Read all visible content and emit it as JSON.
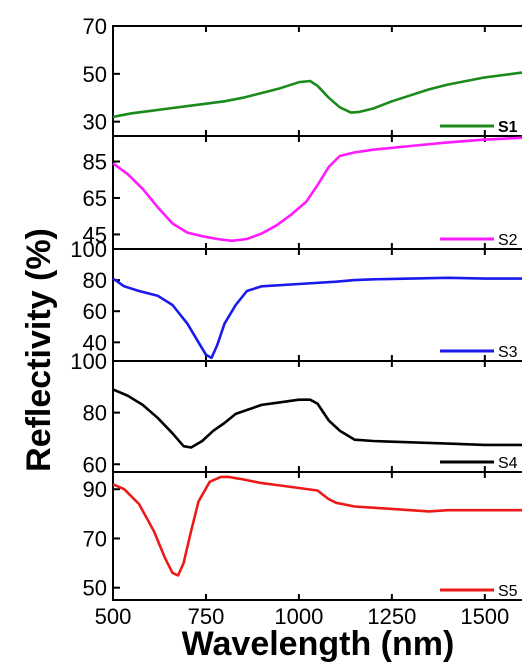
{
  "figure": {
    "xlabel": "Wavelength (nm)",
    "ylabel": "Reflectivity (%)"
  },
  "chart_data": [
    {
      "type": "line",
      "series": [
        {
          "name": "S1",
          "color": "#1a8a1a",
          "x": [
            500,
            550,
            600,
            650,
            700,
            750,
            800,
            850,
            900,
            950,
            1000,
            1030,
            1050,
            1080,
            1110,
            1140,
            1160,
            1200,
            1250,
            1300,
            1350,
            1400,
            1450,
            1500,
            1550,
            1600
          ],
          "y": [
            32,
            33.5,
            34.5,
            35.5,
            36.5,
            37.5,
            38.5,
            40,
            42,
            44,
            46.5,
            47,
            45,
            40,
            36,
            33.8,
            34,
            35.5,
            38.5,
            41,
            43.5,
            45.5,
            47,
            48.5,
            49.5,
            50.5
          ]
        }
      ],
      "xlim": [
        500,
        1600
      ],
      "ylim": [
        24,
        70
      ],
      "yticks": [
        30,
        50,
        70
      ],
      "bold_label": true
    },
    {
      "type": "line",
      "series": [
        {
          "name": "S2",
          "color": "#ff1aff",
          "x": [
            500,
            540,
            580,
            620,
            660,
            700,
            740,
            780,
            820,
            860,
            900,
            940,
            980,
            1020,
            1050,
            1080,
            1110,
            1150,
            1200,
            1300,
            1400,
            1500,
            1600
          ],
          "y": [
            84,
            78,
            70,
            60,
            51,
            46,
            44,
            42.5,
            41.5,
            42.5,
            45.5,
            50,
            56,
            63,
            72,
            82,
            88,
            90,
            91.5,
            93.5,
            95.5,
            97,
            98
          ]
        }
      ],
      "xlim": [
        500,
        1600
      ],
      "ylim": [
        37,
        99
      ],
      "yticks": [
        45,
        65,
        85
      ],
      "bold_label": false
    },
    {
      "type": "line",
      "series": [
        {
          "name": "S3",
          "color": "#1a1aee",
          "x": [
            500,
            530,
            570,
            620,
            660,
            700,
            730,
            750,
            765,
            780,
            800,
            830,
            860,
            900,
            1000,
            1100,
            1150,
            1200,
            1300,
            1400,
            1500,
            1600
          ],
          "y": [
            81,
            76,
            73,
            70,
            64,
            52,
            40,
            32,
            30,
            38,
            52,
            64,
            73,
            76,
            77.5,
            79,
            80,
            80.5,
            81,
            81.5,
            81,
            81
          ]
        }
      ],
      "xlim": [
        500,
        1600
      ],
      "ylim": [
        28,
        100
      ],
      "yticks": [
        40,
        60,
        80,
        100
      ],
      "bold_label": false
    },
    {
      "type": "line",
      "series": [
        {
          "name": "S4",
          "color": "#000000",
          "x": [
            500,
            540,
            580,
            620,
            660,
            690,
            710,
            740,
            770,
            800,
            830,
            860,
            900,
            950,
            1000,
            1030,
            1050,
            1080,
            1110,
            1150,
            1200,
            1300,
            1400,
            1500,
            1600
          ],
          "y": [
            89,
            86.5,
            83,
            78,
            72,
            67,
            66.5,
            69,
            73,
            76,
            79.5,
            81,
            83,
            84,
            85,
            85,
            83.5,
            77,
            73,
            69.5,
            69,
            68.5,
            68,
            67.5,
            67.5
          ]
        }
      ],
      "xlim": [
        500,
        1600
      ],
      "ylim": [
        57,
        100
      ],
      "yticks": [
        60,
        80,
        100
      ],
      "bold_label": false
    },
    {
      "type": "line",
      "series": [
        {
          "name": "S5",
          "color": "#ee1a1a",
          "x": [
            500,
            530,
            570,
            610,
            640,
            660,
            675,
            690,
            710,
            730,
            760,
            790,
            810,
            830,
            850,
            900,
            950,
            1000,
            1050,
            1080,
            1100,
            1150,
            1200,
            1250,
            1300,
            1350,
            1400,
            1450,
            1500,
            1550,
            1600
          ],
          "y": [
            92,
            90,
            84,
            73,
            62,
            56,
            55,
            60,
            73,
            85,
            93,
            95,
            95,
            94.5,
            94,
            92.5,
            91.5,
            90.5,
            89.5,
            86,
            84.5,
            83,
            82.5,
            82,
            81.5,
            81,
            81.5,
            81.5,
            81.5,
            81.5,
            81.5
          ]
        }
      ],
      "xlim": [
        500,
        1600
      ],
      "ylim": [
        45,
        97
      ],
      "yticks": [
        50,
        70,
        90
      ],
      "bold_label": false
    }
  ],
  "xaxis": {
    "ticks": [
      500,
      750,
      1000,
      1250,
      1500
    ],
    "tick_labels": [
      "500",
      "750",
      "1000",
      "1250",
      "1500"
    ]
  }
}
